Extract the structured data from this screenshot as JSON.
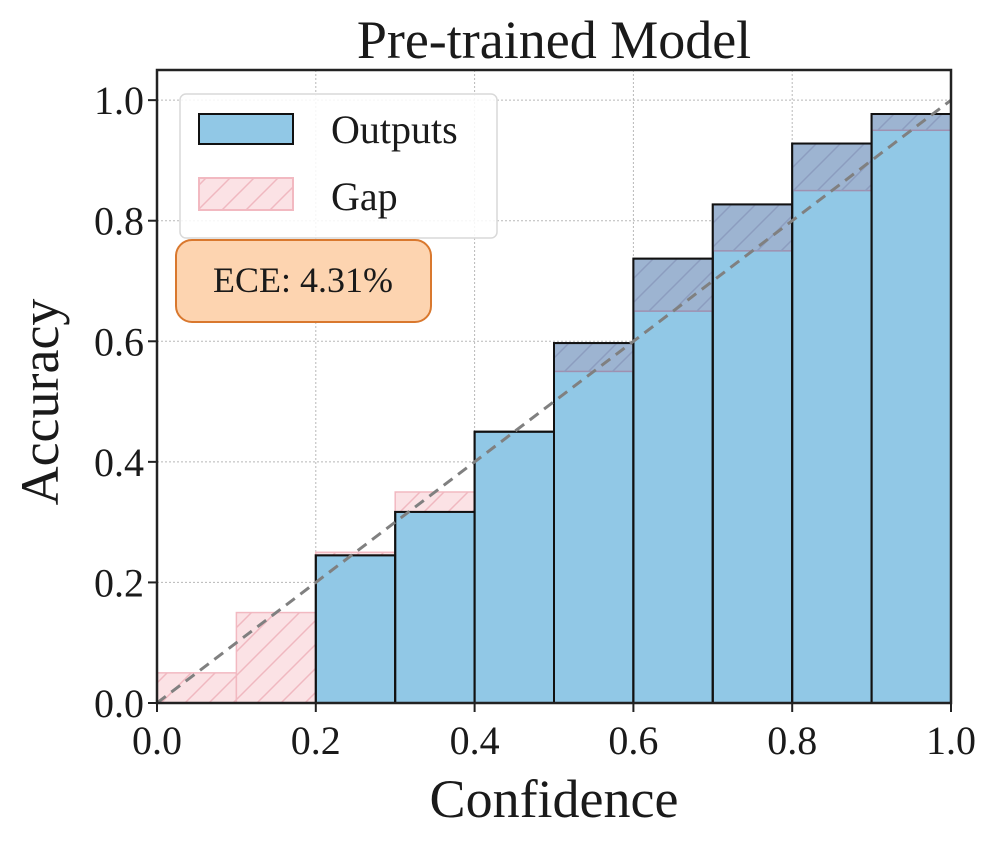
{
  "chart_data": {
    "type": "bar",
    "title": "Pre-trained Model",
    "xlabel": "Confidence",
    "ylabel": "Accuracy",
    "xlim": [
      0,
      1
    ],
    "ylim": [
      0,
      1.05
    ],
    "xticks": [
      "0.0",
      "0.2",
      "0.4",
      "0.6",
      "0.8",
      "1.0"
    ],
    "yticks": [
      "0.0",
      "0.2",
      "0.4",
      "0.6",
      "0.8",
      "1.0"
    ],
    "grid": true,
    "legend_position": "top-left",
    "bin_edges": [
      0.0,
      0.1,
      0.2,
      0.3,
      0.4,
      0.5,
      0.6,
      0.7,
      0.8,
      0.9,
      1.0
    ],
    "series": [
      {
        "name": "Outputs",
        "values": [
          0.0,
          0.0,
          0.245,
          0.317,
          0.45,
          0.597,
          0.737,
          0.827,
          0.928,
          0.977
        ]
      },
      {
        "name": "Gap",
        "values": [
          0.05,
          0.15,
          0.25,
          0.35,
          0.45,
          0.55,
          0.65,
          0.75,
          0.85,
          0.95
        ]
      }
    ],
    "diagonal": true,
    "annotation": "ECE: 4.31%",
    "colors": {
      "outputs_fill": "#91c8e6",
      "gap_fill": "#fbe2e5",
      "gap_edge": "#f2b9c1",
      "overlap_fill": "#9eb3d0",
      "annotation_fill": "#fdd4b0",
      "annotation_edge": "#d9782e",
      "diagonal": "#808080"
    }
  }
}
